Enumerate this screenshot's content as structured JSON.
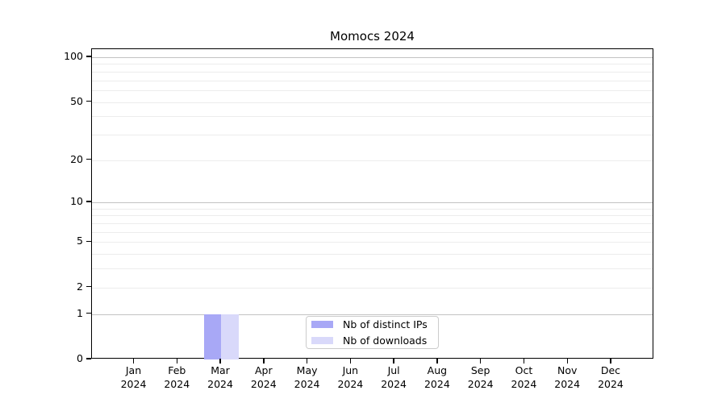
{
  "title": "Momocs 2024",
  "chart_data": {
    "type": "bar",
    "title": "Momocs 2024",
    "xlabel": "",
    "ylabel": "",
    "categories": [
      "Jan",
      "Feb",
      "Mar",
      "Apr",
      "May",
      "Jun",
      "Jul",
      "Aug",
      "Sep",
      "Oct",
      "Nov",
      "Dec"
    ],
    "year": "2024",
    "series": [
      {
        "name": "Nb of distinct IPs",
        "color": "#a8a8f6",
        "values": [
          0,
          0,
          1,
          0,
          0,
          0,
          0,
          0,
          0,
          0,
          0,
          0
        ]
      },
      {
        "name": "Nb of downloads",
        "color": "#d9d9fa",
        "values": [
          0,
          0,
          1,
          0,
          0,
          0,
          0,
          0,
          0,
          0,
          0,
          0
        ]
      }
    ],
    "yscale": "log1p",
    "ylim": [
      0,
      113
    ],
    "ytick_labels": [
      0,
      1,
      2,
      5,
      10,
      20,
      50,
      100
    ],
    "major_gridlines": [
      1,
      10,
      100
    ],
    "minor_gridlines": [
      2,
      3,
      4,
      5,
      6,
      7,
      8,
      9,
      20,
      30,
      40,
      50,
      60,
      70,
      80,
      90
    ],
    "grid": true,
    "bar_width_fraction": 0.4,
    "legend_position": "lower center",
    "legend_entries": [
      "Nb of distinct IPs",
      "Nb of downloads"
    ]
  },
  "colors": {
    "background": "#ffffff",
    "spine": "#000000",
    "major_grid": "#c3c3c3",
    "minor_grid": "#ececec",
    "legend_border": "#cccccc",
    "bar_distinct_ips": "#a8a8f6",
    "bar_downloads": "#d9d9fa"
  }
}
